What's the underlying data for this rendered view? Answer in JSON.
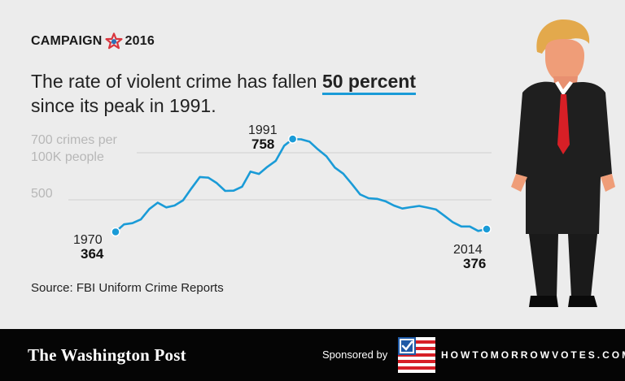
{
  "brand": {
    "left": "CAMPAIGN",
    "right": "2016",
    "star_icon": "campaign-star-icon"
  },
  "headline": {
    "pre": "The rate of violent crime has fallen ",
    "highlight": "50 percent",
    "post": "since its peak in 1991."
  },
  "source": "Source: FBI Uniform Crime Reports",
  "footer": {
    "logo": "The Washington Post",
    "sponsored_label": "Sponsored by",
    "sponsor_url": "HOWTOMORROWVOTES.COM",
    "flag_icon": "checkbox-flag-icon"
  },
  "colors": {
    "accent": "#1a9bd7",
    "background": "#ececec",
    "footer": "#050505",
    "grid": "#cfcfcf",
    "axis_label": "#b7b7b7"
  },
  "chart_data": {
    "type": "line",
    "title": "",
    "ylabel_line1": "700 crimes per",
    "ylabel_line2": "100K people",
    "yticks": [
      {
        "value": 700,
        "label": ""
      },
      {
        "value": 500,
        "label": "500"
      }
    ],
    "ylim": [
      300,
      800
    ],
    "xlim": [
      1970,
      2014
    ],
    "series": [
      {
        "name": "Violent crime rate",
        "x": [
          1970,
          1971,
          1972,
          1973,
          1974,
          1975,
          1976,
          1977,
          1978,
          1979,
          1980,
          1981,
          1982,
          1983,
          1984,
          1985,
          1986,
          1987,
          1988,
          1989,
          1990,
          1991,
          1992,
          1993,
          1994,
          1995,
          1996,
          1997,
          1998,
          1999,
          2000,
          2001,
          2002,
          2003,
          2004,
          2005,
          2006,
          2007,
          2008,
          2009,
          2010,
          2011,
          2012,
          2013,
          2014
        ],
        "values": [
          364,
          396,
          401,
          417,
          461,
          488,
          468,
          476,
          498,
          549,
          597,
          594,
          571,
          538,
          539,
          556,
          620,
          610,
          640,
          666,
          730,
          758,
          757,
          747,
          714,
          685,
          637,
          611,
          568,
          523,
          507,
          504,
          494,
          476,
          463,
          469,
          474,
          467,
          459,
          432,
          405,
          387,
          387,
          368,
          376
        ]
      }
    ],
    "annotations": [
      {
        "id": "start",
        "year": "1970",
        "value": "364"
      },
      {
        "id": "peak",
        "year": "1991",
        "value": "758"
      },
      {
        "id": "end",
        "year": "2014",
        "value": "376"
      }
    ]
  }
}
